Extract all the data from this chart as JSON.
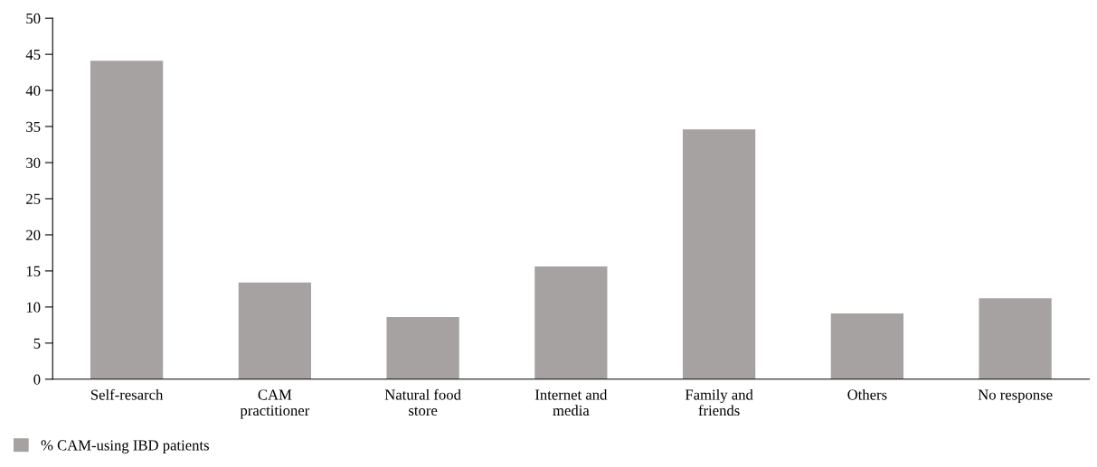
{
  "chart_data": {
    "type": "bar",
    "categories": [
      "Self-resarch",
      "CAM\npractitioner",
      "Natural food\nstore",
      "Internet and\nmedia",
      "Family and\nfriends",
      "Others",
      "No response"
    ],
    "series": [
      {
        "name": "% CAM-using IBD patients",
        "color": "#a6a2a1",
        "values": [
          44.1,
          13.4,
          8.6,
          15.6,
          34.6,
          9.1,
          11.2
        ]
      }
    ],
    "ylim": [
      0,
      50
    ],
    "yticks": [
      0,
      5,
      10,
      15,
      20,
      25,
      30,
      35,
      40,
      45,
      50
    ],
    "grid": false,
    "legend": "bottom left"
  }
}
